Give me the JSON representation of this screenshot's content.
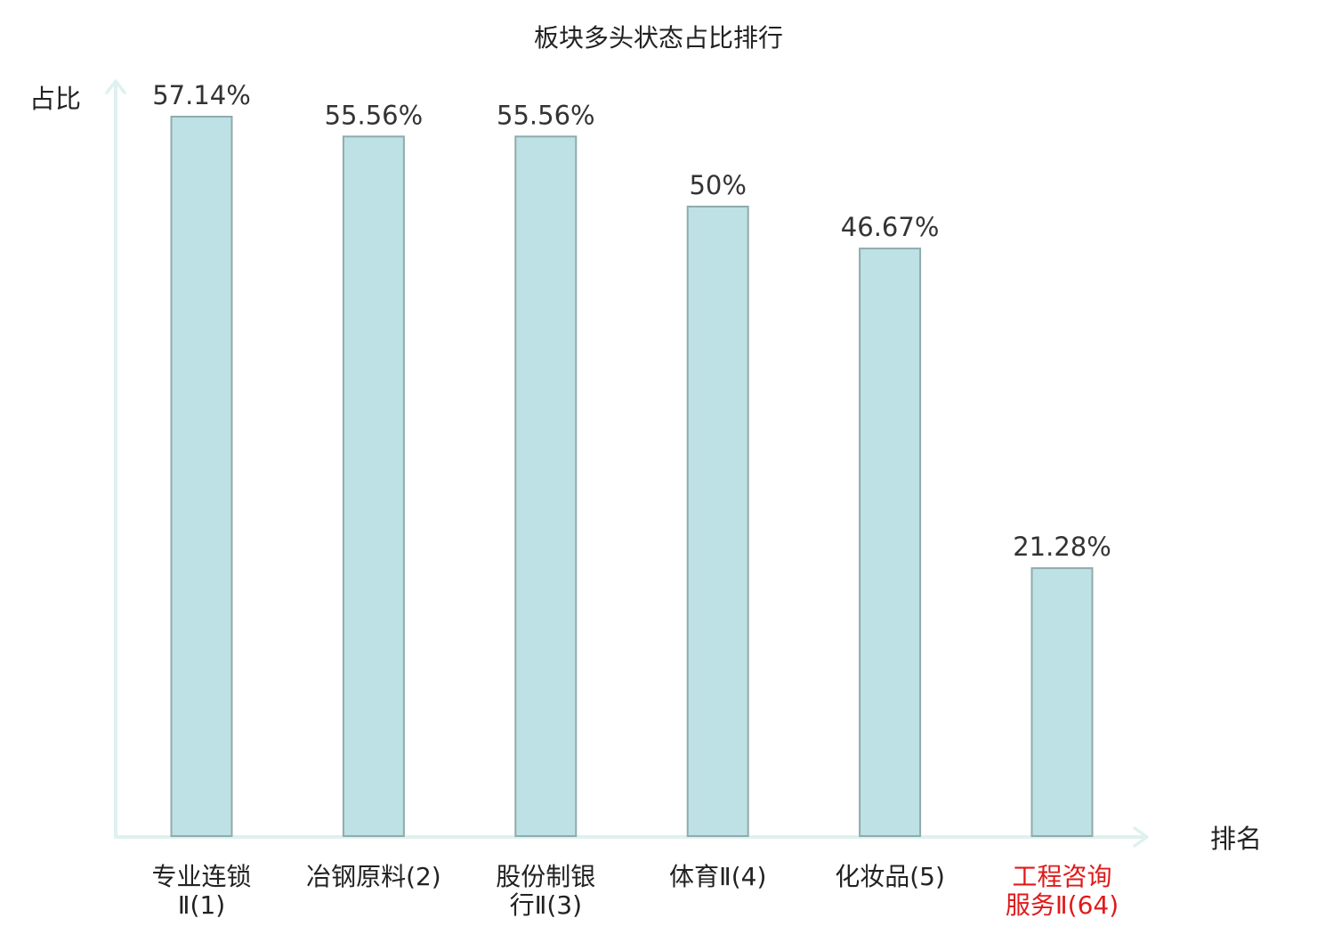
{
  "chart_data": {
    "type": "bar",
    "title": "板块多头状态占比排行",
    "xlabel": "排名",
    "ylabel": "占比",
    "categories": [
      {
        "lines": [
          "专业连锁",
          "Ⅱ(1)"
        ],
        "highlight": false
      },
      {
        "lines": [
          "冶钢原料(2)"
        ],
        "highlight": false
      },
      {
        "lines": [
          "股份制银",
          "行Ⅱ(3)"
        ],
        "highlight": false
      },
      {
        "lines": [
          "体育Ⅱ(4)"
        ],
        "highlight": false
      },
      {
        "lines": [
          "化妆品(5)"
        ],
        "highlight": false
      },
      {
        "lines": [
          "工程咨询",
          "服务Ⅱ(64)"
        ],
        "highlight": true
      }
    ],
    "values": [
      57.14,
      55.56,
      55.56,
      50,
      46.67,
      21.28
    ],
    "value_labels": [
      "57.14%",
      "55.56%",
      "55.56%",
      "50%",
      "46.67%",
      "21.28%"
    ],
    "ylim": [
      0,
      57.14
    ],
    "grid": false,
    "colors": {
      "bar_fill": "#bde1e4",
      "bar_stroke": "#8fabad",
      "axis": "#dff1ef",
      "text": "#222222",
      "value_text": "#333333",
      "category_text": "#222222",
      "category_digits": "#555555",
      "highlight": "#e01a1a"
    }
  }
}
